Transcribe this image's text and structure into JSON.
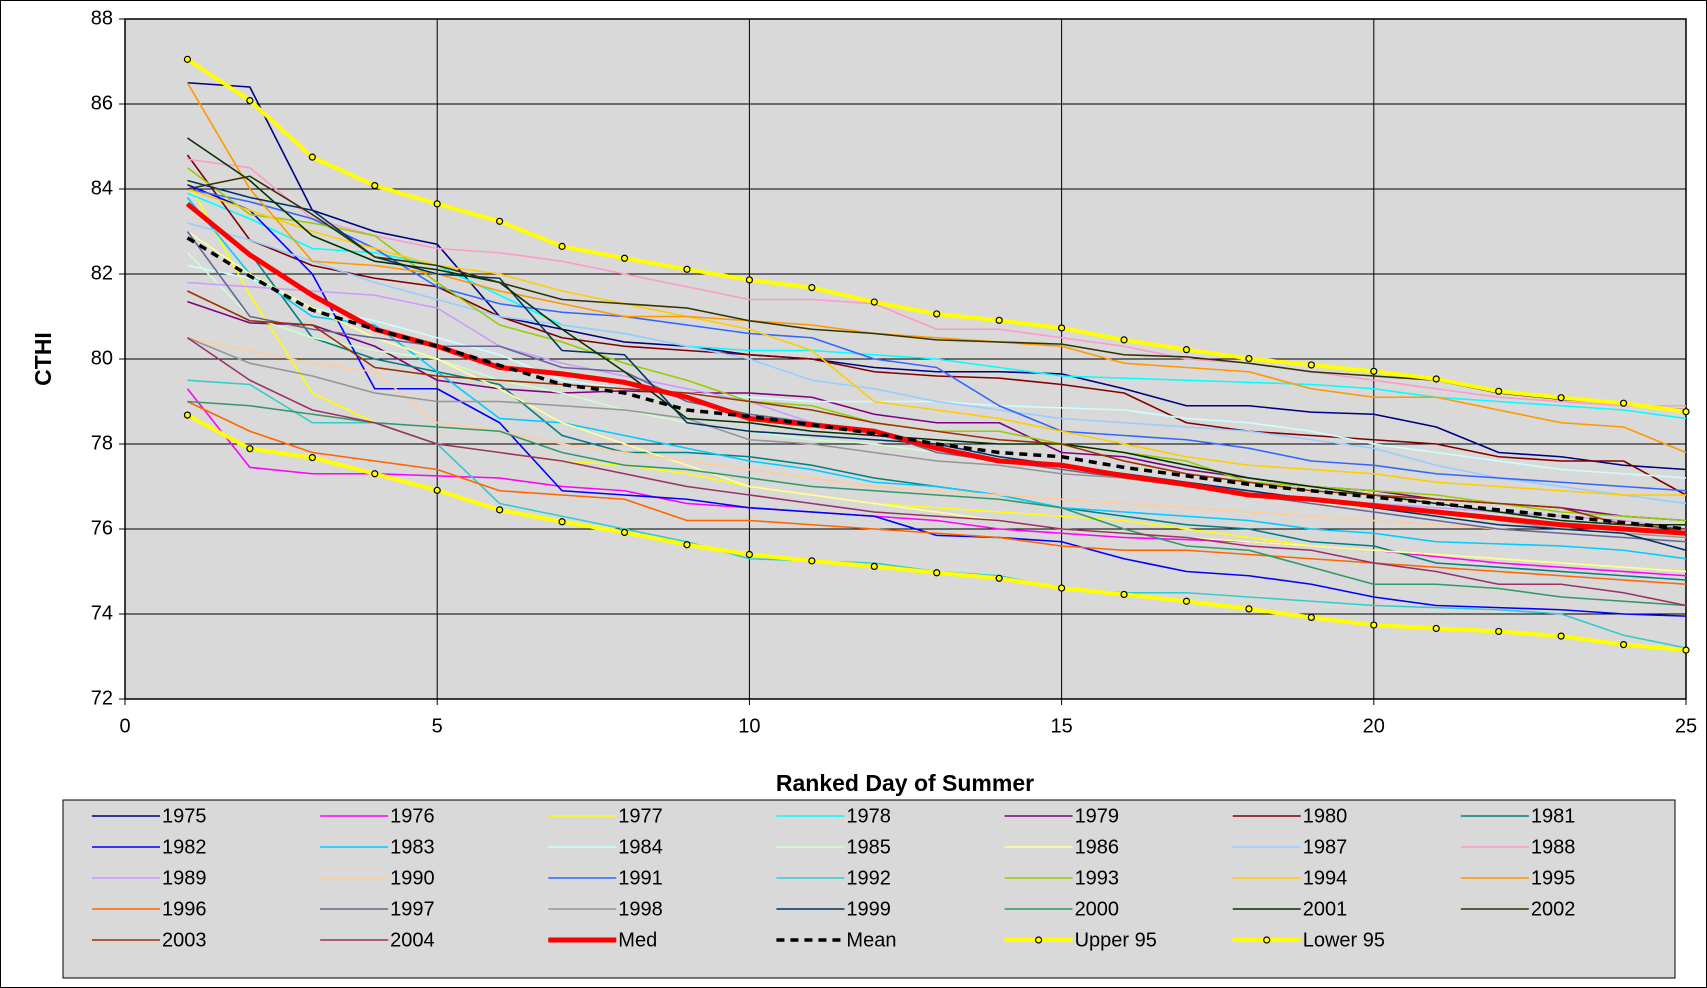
{
  "chart_data": {
    "type": "line",
    "x_label": "Ranked Day of Summer",
    "y_label": "CTHI",
    "x": [
      1,
      2,
      3,
      4,
      5,
      6,
      7,
      8,
      9,
      10,
      11,
      12,
      13,
      14,
      15,
      16,
      17,
      18,
      19,
      20,
      21,
      22,
      23,
      24,
      25
    ],
    "xlim": [
      0,
      25
    ],
    "xticks": [
      0,
      5,
      10,
      15,
      20,
      25
    ],
    "ylim": [
      72,
      88
    ],
    "yticks": [
      72,
      74,
      76,
      78,
      80,
      82,
      84,
      86,
      88
    ],
    "grid": true,
    "legend": "bottom",
    "legend_columns": 7,
    "series": [
      {
        "name": "1975",
        "color": "#000080",
        "values": [
          86.5,
          86.4,
          83.5,
          83.0,
          82.7,
          81.0,
          80.7,
          80.4,
          80.3,
          80.1,
          80.0,
          79.8,
          79.7,
          79.7,
          79.65,
          79.3,
          78.9,
          78.9,
          78.75,
          78.7,
          78.4,
          77.8,
          77.7,
          77.5,
          77.4
        ]
      },
      {
        "name": "1976",
        "color": "#ff00ff",
        "values": [
          79.3,
          77.45,
          77.3,
          77.3,
          77.25,
          77.2,
          77.0,
          76.9,
          76.6,
          76.5,
          76.4,
          76.3,
          76.2,
          76.0,
          75.9,
          75.8,
          75.75,
          75.7,
          75.6,
          75.5,
          75.35,
          75.2,
          75.1,
          75.0,
          74.9
        ]
      },
      {
        "name": "1977",
        "color": "#ffff00",
        "values": [
          84.2,
          81.5,
          79.2,
          78.5,
          78.0,
          77.8,
          77.6,
          77.5,
          77.3,
          77.0,
          76.8,
          76.6,
          76.5,
          76.4,
          76.3,
          76.2,
          76.0,
          75.8,
          75.6,
          75.5,
          75.4,
          75.3,
          75.2,
          75.1,
          75.0
        ]
      },
      {
        "name": "1978",
        "color": "#00ffff",
        "values": [
          83.9,
          83.3,
          82.6,
          82.5,
          82.2,
          81.5,
          80.8,
          80.6,
          80.3,
          80.2,
          80.2,
          80.1,
          80.0,
          79.8,
          79.6,
          79.55,
          79.5,
          79.45,
          79.4,
          79.3,
          79.1,
          79.0,
          78.9,
          78.8,
          78.6
        ]
      },
      {
        "name": "1979",
        "color": "#800080",
        "values": [
          81.35,
          80.85,
          80.8,
          80.3,
          79.5,
          79.3,
          79.2,
          79.25,
          79.2,
          79.2,
          79.1,
          78.7,
          78.5,
          78.5,
          77.8,
          77.7,
          77.4,
          77.2,
          77.0,
          76.9,
          76.7,
          76.6,
          76.5,
          76.3,
          76.2
        ]
      },
      {
        "name": "1980",
        "color": "#800000",
        "values": [
          84.8,
          82.8,
          82.2,
          81.9,
          81.7,
          81.0,
          80.5,
          80.3,
          80.2,
          80.1,
          80.0,
          79.7,
          79.6,
          79.55,
          79.4,
          79.2,
          78.5,
          78.3,
          78.2,
          78.1,
          78.0,
          77.7,
          77.6,
          77.6,
          76.8
        ]
      },
      {
        "name": "1981",
        "color": "#008080",
        "values": [
          83.6,
          82.5,
          80.5,
          80.0,
          79.7,
          79.4,
          78.2,
          77.8,
          77.8,
          77.7,
          77.5,
          77.2,
          77.0,
          76.8,
          76.5,
          76.3,
          76.1,
          76.0,
          75.7,
          75.6,
          75.2,
          75.1,
          75.0,
          74.9,
          74.8
        ]
      },
      {
        "name": "1982",
        "color": "#0000ff",
        "values": [
          84.1,
          83.5,
          82.0,
          79.3,
          79.3,
          78.5,
          76.9,
          76.8,
          76.7,
          76.5,
          76.4,
          76.3,
          75.85,
          75.8,
          75.7,
          75.3,
          75.0,
          74.9,
          74.7,
          74.4,
          74.2,
          74.15,
          74.1,
          74.0,
          73.95
        ]
      },
      {
        "name": "1983",
        "color": "#00ccff",
        "values": [
          83.8,
          82.0,
          81.0,
          80.8,
          79.7,
          78.6,
          78.5,
          78.2,
          77.9,
          77.6,
          77.4,
          77.1,
          77.0,
          76.8,
          76.5,
          76.4,
          76.3,
          76.2,
          76.0,
          75.9,
          75.7,
          75.65,
          75.6,
          75.5,
          75.3
        ]
      },
      {
        "name": "1984",
        "color": "#ccffff",
        "values": [
          82.2,
          81.9,
          81.2,
          80.9,
          80.5,
          80.1,
          79.5,
          79.3,
          79.2,
          79.1,
          79.0,
          79.0,
          79.0,
          78.9,
          78.85,
          78.8,
          78.6,
          78.5,
          78.3,
          78.0,
          77.8,
          77.6,
          77.4,
          77.3,
          77.2
        ]
      },
      {
        "name": "1985",
        "color": "#ccffcc",
        "values": [
          82.5,
          81.0,
          80.5,
          80.2,
          80.0,
          79.5,
          79.2,
          78.8,
          78.5,
          78.3,
          78.1,
          78.0,
          77.8,
          77.6,
          77.4,
          77.2,
          77.0,
          76.8,
          76.6,
          76.5,
          76.3,
          76.2,
          76.0,
          75.9,
          75.8
        ]
      },
      {
        "name": "1986",
        "color": "#ffff99",
        "values": [
          83.0,
          82.0,
          81.2,
          80.5,
          80.0,
          79.3,
          78.5,
          78.0,
          77.5,
          77.0,
          76.8,
          76.6,
          76.4,
          76.2,
          76.0,
          75.9,
          75.8,
          75.7,
          75.6,
          75.5,
          75.4,
          75.3,
          75.2,
          75.1,
          75.0
        ]
      },
      {
        "name": "1987",
        "color": "#99ccff",
        "values": [
          83.2,
          82.8,
          82.3,
          81.8,
          81.4,
          81.0,
          80.8,
          80.6,
          80.3,
          80.0,
          79.5,
          79.3,
          79.0,
          78.8,
          78.6,
          78.5,
          78.4,
          78.3,
          78.1,
          77.9,
          77.5,
          77.2,
          77.0,
          76.8,
          76.6
        ]
      },
      {
        "name": "1988",
        "color": "#ff99cc",
        "values": [
          84.7,
          84.5,
          83.3,
          82.9,
          82.6,
          82.5,
          82.3,
          82.0,
          81.7,
          81.4,
          81.4,
          81.3,
          80.7,
          80.7,
          80.5,
          80.3,
          80.0,
          79.9,
          79.7,
          79.5,
          79.3,
          79.1,
          79.0,
          78.9,
          78.9
        ]
      },
      {
        "name": "1989",
        "color": "#cc99ff",
        "values": [
          81.8,
          81.7,
          81.6,
          81.5,
          81.2,
          80.3,
          79.9,
          79.6,
          79.3,
          79.0,
          78.5,
          78.2,
          78.0,
          77.7,
          77.5,
          77.3,
          77.1,
          76.9,
          76.7,
          76.6,
          76.5,
          76.4,
          76.3,
          76.2,
          76.0
        ]
      },
      {
        "name": "1990",
        "color": "#ffcc99",
        "values": [
          80.5,
          80.2,
          79.9,
          79.7,
          78.5,
          78.3,
          78.0,
          77.8,
          77.6,
          77.4,
          77.2,
          77.0,
          76.9,
          76.8,
          76.7,
          76.6,
          76.5,
          76.4,
          76.3,
          76.2,
          76.1,
          76.0,
          75.9,
          75.8,
          75.7
        ]
      },
      {
        "name": "1991",
        "color": "#3366ff",
        "values": [
          84.0,
          83.7,
          83.3,
          82.6,
          81.7,
          81.3,
          81.1,
          81.0,
          80.8,
          80.6,
          80.5,
          80.0,
          79.8,
          78.9,
          78.3,
          78.2,
          78.1,
          77.9,
          77.6,
          77.5,
          77.3,
          77.2,
          77.1,
          77.0,
          76.9
        ]
      },
      {
        "name": "1992",
        "color": "#33cccc",
        "values": [
          79.5,
          79.4,
          78.5,
          78.5,
          78.0,
          76.6,
          76.3,
          76.0,
          75.7,
          75.3,
          75.25,
          75.2,
          75.0,
          74.9,
          74.6,
          74.5,
          74.5,
          74.4,
          74.3,
          74.2,
          74.15,
          74.1,
          74.0,
          73.5,
          73.2
        ]
      },
      {
        "name": "1993",
        "color": "#99cc00",
        "values": [
          84.5,
          83.4,
          83.2,
          82.9,
          81.8,
          80.8,
          80.4,
          79.9,
          79.5,
          79.0,
          78.9,
          78.5,
          78.3,
          78.3,
          78.0,
          77.8,
          77.6,
          77.1,
          77.0,
          76.9,
          76.8,
          76.6,
          76.4,
          76.3,
          76.2
        ]
      },
      {
        "name": "1994",
        "color": "#ffcc00",
        "values": [
          84.0,
          83.5,
          83.0,
          82.6,
          82.2,
          82.0,
          81.6,
          81.3,
          81.0,
          80.7,
          80.2,
          79.0,
          78.8,
          78.6,
          78.3,
          78.0,
          77.7,
          77.5,
          77.4,
          77.3,
          77.1,
          77.0,
          76.9,
          76.8,
          76.8
        ]
      },
      {
        "name": "1995",
        "color": "#ff9900",
        "values": [
          86.5,
          84.0,
          82.3,
          82.2,
          82.0,
          81.6,
          81.3,
          81.0,
          81.0,
          80.9,
          80.8,
          80.6,
          80.5,
          80.4,
          80.3,
          79.9,
          79.8,
          79.7,
          79.3,
          79.1,
          79.1,
          78.8,
          78.5,
          78.4,
          77.8
        ]
      },
      {
        "name": "1996",
        "color": "#ff6600",
        "values": [
          79.0,
          78.3,
          77.8,
          77.6,
          77.4,
          76.9,
          76.8,
          76.7,
          76.2,
          76.2,
          76.1,
          76.0,
          75.9,
          75.8,
          75.6,
          75.5,
          75.5,
          75.4,
          75.3,
          75.2,
          75.1,
          75.0,
          74.9,
          74.8,
          74.7
        ]
      },
      {
        "name": "1997",
        "color": "#666699",
        "values": [
          83.0,
          81.0,
          80.7,
          80.5,
          80.3,
          80.3,
          79.8,
          79.7,
          79.0,
          78.7,
          78.5,
          78.3,
          77.8,
          77.6,
          77.4,
          77.2,
          77.0,
          76.8,
          76.6,
          76.4,
          76.2,
          76.0,
          75.9,
          75.8,
          75.7
        ]
      },
      {
        "name": "1998",
        "color": "#969696",
        "values": [
          80.5,
          79.9,
          79.6,
          79.2,
          79.0,
          79.0,
          78.9,
          78.8,
          78.6,
          78.1,
          78.0,
          77.8,
          77.6,
          77.5,
          77.3,
          77.2,
          77.0,
          76.9,
          76.7,
          76.5,
          76.4,
          76.2,
          76.0,
          75.9,
          75.8
        ]
      },
      {
        "name": "1999",
        "color": "#003366",
        "values": [
          84.2,
          83.8,
          83.5,
          82.4,
          82.0,
          81.9,
          80.2,
          80.1,
          78.5,
          78.3,
          78.2,
          78.1,
          78.0,
          77.7,
          77.5,
          77.3,
          77.1,
          76.9,
          76.7,
          76.5,
          76.3,
          76.1,
          76.0,
          75.9,
          75.5
        ]
      },
      {
        "name": "2000",
        "color": "#339966",
        "values": [
          79.0,
          78.9,
          78.7,
          78.5,
          78.4,
          78.3,
          77.8,
          77.5,
          77.4,
          77.2,
          77.0,
          76.9,
          76.8,
          76.7,
          76.5,
          76.0,
          75.6,
          75.5,
          75.1,
          74.7,
          74.7,
          74.6,
          74.4,
          74.3,
          74.2
        ]
      },
      {
        "name": "2001",
        "color": "#003300",
        "values": [
          85.2,
          84.2,
          82.9,
          82.3,
          82.1,
          81.8,
          80.7,
          79.7,
          78.6,
          78.5,
          78.3,
          78.2,
          78.1,
          78.0,
          78.0,
          77.8,
          77.5,
          77.2,
          77.0,
          76.8,
          76.6,
          76.4,
          76.2,
          76.1,
          76.1
        ]
      },
      {
        "name": "2002",
        "color": "#333300",
        "values": [
          84.0,
          84.3,
          83.4,
          82.4,
          82.2,
          81.8,
          81.4,
          81.3,
          81.2,
          80.9,
          80.7,
          80.6,
          80.45,
          80.4,
          80.35,
          80.1,
          80.05,
          79.9,
          79.7,
          79.6,
          79.5,
          79.2,
          79.05,
          78.95,
          78.8
        ]
      },
      {
        "name": "2003",
        "color": "#993300",
        "values": [
          81.6,
          80.9,
          80.8,
          79.8,
          79.6,
          79.5,
          79.4,
          79.3,
          79.2,
          79.0,
          78.8,
          78.5,
          78.3,
          78.1,
          78.0,
          77.6,
          77.3,
          77.1,
          76.9,
          76.8,
          76.7,
          76.6,
          76.5,
          76.1,
          76.0
        ]
      },
      {
        "name": "2004",
        "color": "#993366",
        "values": [
          80.5,
          79.5,
          78.8,
          78.5,
          78.0,
          77.8,
          77.6,
          77.3,
          77.0,
          76.8,
          76.6,
          76.4,
          76.3,
          76.2,
          76.0,
          75.9,
          75.8,
          75.6,
          75.5,
          75.2,
          75.0,
          74.7,
          74.7,
          74.5,
          74.2
        ]
      },
      {
        "name": "Med",
        "color": "#ff0000",
        "width": 5,
        "values": [
          83.65,
          82.45,
          81.5,
          80.7,
          80.3,
          79.8,
          79.65,
          79.45,
          79.1,
          78.6,
          78.45,
          78.3,
          77.9,
          77.6,
          77.5,
          77.25,
          77.05,
          76.8,
          76.7,
          76.55,
          76.4,
          76.25,
          76.1,
          76.0,
          75.9
        ]
      },
      {
        "name": "Mean",
        "color": "#000000",
        "width": 3.5,
        "dashed": true,
        "values": [
          82.85,
          81.95,
          81.15,
          80.7,
          80.3,
          79.85,
          79.4,
          79.2,
          78.8,
          78.65,
          78.45,
          78.25,
          78.0,
          77.8,
          77.7,
          77.45,
          77.25,
          77.05,
          76.9,
          76.75,
          76.6,
          76.45,
          76.3,
          76.15,
          76.0
        ]
      },
      {
        "name": "Upper 95",
        "color": "#ffff00",
        "width": 4,
        "markers": true,
        "values": [
          87.05,
          86.08,
          84.75,
          84.08,
          83.65,
          83.24,
          82.65,
          82.37,
          82.11,
          81.86,
          81.68,
          81.34,
          81.06,
          80.91,
          80.73,
          80.45,
          80.22,
          80.01,
          79.86,
          79.71,
          79.53,
          79.24,
          79.09,
          78.96,
          78.76
        ]
      },
      {
        "name": "Lower 95",
        "color": "#ffff00",
        "width": 4,
        "markers": true,
        "values": [
          78.68,
          77.89,
          77.68,
          77.3,
          76.91,
          76.45,
          76.17,
          75.92,
          75.63,
          75.4,
          75.25,
          75.12,
          74.97,
          74.84,
          74.61,
          74.46,
          74.3,
          74.12,
          73.92,
          73.74,
          73.66,
          73.59,
          73.48,
          73.28,
          73.15
        ]
      }
    ]
  }
}
